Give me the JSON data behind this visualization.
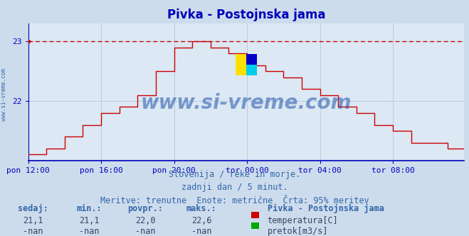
{
  "title": "Pivka - Postojnska jama",
  "bg_color": "#cddcec",
  "plot_bg_color": "#dce8f4",
  "grid_color": "#b8ccdc",
  "line_color": "#cc0000",
  "dashed_line_color": "#cc0000",
  "axis_color": "#0000bb",
  "text_color": "#3366aa",
  "subtitle_lines": [
    "Slovenija / reke in morje.",
    "zadnji dan / 5 minut.",
    "Meritve: trenutne  Enote: metrične  Črta: 95% meritev"
  ],
  "stats_labels": [
    "sedaj:",
    "min.:",
    "povpr.:",
    "maks.:"
  ],
  "stats_values": [
    "21,1",
    "21,1",
    "22,0",
    "22,6"
  ],
  "stats_values2": [
    "-nan",
    "-nan",
    "-nan",
    "-nan"
  ],
  "legend_title": "Pivka - Postojnska jama",
  "legend_items": [
    {
      "label": "temperatura[C]",
      "color": "#cc0000"
    },
    {
      "label": "pretok[m3/s]",
      "color": "#00aa00"
    }
  ],
  "ylim_min": 21.0,
  "ylim_max": 23.3,
  "yticks": [
    22,
    23
  ],
  "xtick_labels": [
    "pon 12:00",
    "pon 16:00",
    "pon 20:00",
    "tor 00:00",
    "tor 04:00",
    "tor 08:00"
  ],
  "xtick_positions": [
    0,
    48,
    96,
    144,
    192,
    240
  ],
  "total_points": 288,
  "dashed_y": 23.0,
  "watermark": "www.si-vreme.com",
  "watermark_color": "#2255aa",
  "side_label": "www.si-vreme.com",
  "title_fontsize": 12,
  "tick_fontsize": 8,
  "subtitle_fontsize": 8.5,
  "stats_fontsize": 8.5,
  "logo_colors": {
    "yellow": "#FFE000",
    "cyan": "#00CCEE",
    "blue": "#0000CC"
  }
}
